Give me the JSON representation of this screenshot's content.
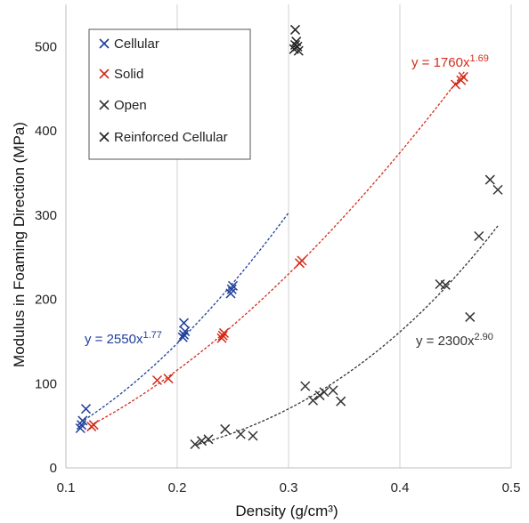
{
  "chart_data": {
    "type": "scatter",
    "xlabel": "Density (g/cm³)",
    "ylabel": "Modulus in Foaming Direction  (MPa)",
    "xlim": [
      0.1,
      0.5
    ],
    "ylim": [
      0,
      550
    ],
    "x_ticks": [
      "0.1",
      "0.2",
      "0.3",
      "0.4",
      "0.5"
    ],
    "y_ticks": [
      "0",
      "100",
      "200",
      "300",
      "400",
      "500"
    ],
    "grid": "vertical",
    "legend_position": "top-left",
    "series": [
      {
        "name": "Cellular",
        "color": "#1f3f9a",
        "marker": "x",
        "points": [
          [
            0.113,
            47
          ],
          [
            0.114,
            51
          ],
          [
            0.115,
            56
          ],
          [
            0.118,
            70
          ],
          [
            0.205,
            155
          ],
          [
            0.206,
            158
          ],
          [
            0.207,
            162
          ],
          [
            0.206,
            172
          ],
          [
            0.248,
            207
          ],
          [
            0.249,
            212
          ],
          [
            0.25,
            216
          ]
        ],
        "fit": {
          "label_base": "y = 2550x",
          "label_exp": "1.77",
          "a": 2550,
          "b": 1.77,
          "x_range": [
            0.113,
            0.3
          ]
        }
      },
      {
        "name": "Solid",
        "color": "#d42a1a",
        "marker": "x",
        "points": [
          [
            0.123,
            49
          ],
          [
            0.125,
            51
          ],
          [
            0.182,
            104
          ],
          [
            0.192,
            106
          ],
          [
            0.24,
            154
          ],
          [
            0.241,
            157
          ],
          [
            0.242,
            160
          ],
          [
            0.31,
            243
          ],
          [
            0.312,
            246
          ],
          [
            0.45,
            455
          ],
          [
            0.455,
            460
          ],
          [
            0.457,
            464
          ]
        ],
        "fit": {
          "label_base": "y = 1760x",
          "label_exp": "1.69",
          "a": 1760,
          "b": 1.69,
          "x_range": [
            0.125,
            0.458
          ]
        }
      },
      {
        "name": "Open",
        "color": "#333333",
        "marker": "x",
        "points": [
          [
            0.216,
            28
          ],
          [
            0.222,
            32
          ],
          [
            0.228,
            34
          ],
          [
            0.243,
            46
          ],
          [
            0.257,
            40
          ],
          [
            0.268,
            38
          ],
          [
            0.315,
            97
          ],
          [
            0.322,
            80
          ],
          [
            0.328,
            86
          ],
          [
            0.332,
            90
          ],
          [
            0.34,
            92
          ],
          [
            0.347,
            79
          ],
          [
            0.436,
            218
          ],
          [
            0.441,
            217
          ],
          [
            0.463,
            179
          ],
          [
            0.471,
            275
          ],
          [
            0.481,
            342
          ],
          [
            0.488,
            330
          ]
        ],
        "fit": {
          "label_base": "y = 2300x",
          "label_exp": "2.90",
          "a": 2300,
          "b": 2.9,
          "x_range": [
            0.216,
            0.488
          ]
        }
      },
      {
        "name": "Reinforced Cellular",
        "color": "#222222",
        "marker": "x",
        "points": [
          [
            0.305,
            497
          ],
          [
            0.306,
            502
          ],
          [
            0.307,
            506
          ],
          [
            0.308,
            500
          ],
          [
            0.309,
            495
          ],
          [
            0.306,
            520
          ]
        ],
        "fit": null
      }
    ]
  }
}
